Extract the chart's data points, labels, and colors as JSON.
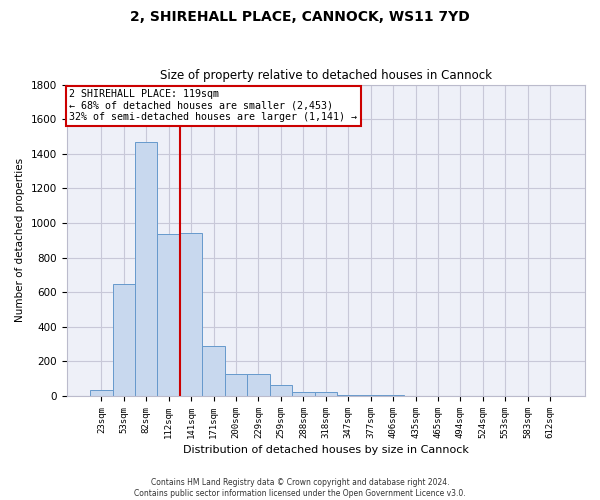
{
  "title1": "2, SHIREHALL PLACE, CANNOCK, WS11 7YD",
  "title2": "Size of property relative to detached houses in Cannock",
  "xlabel": "Distribution of detached houses by size in Cannock",
  "ylabel": "Number of detached properties",
  "bar_color": "#c8d8ee",
  "bar_edge_color": "#6699cc",
  "grid_color": "#c8c8d8",
  "background_color": "#eef0f8",
  "annotation_box_color": "#cc0000",
  "vline_color": "#cc0000",
  "categories": [
    "23sqm",
    "53sqm",
    "82sqm",
    "112sqm",
    "141sqm",
    "171sqm",
    "200sqm",
    "229sqm",
    "259sqm",
    "288sqm",
    "318sqm",
    "347sqm",
    "377sqm",
    "406sqm",
    "435sqm",
    "465sqm",
    "494sqm",
    "524sqm",
    "553sqm",
    "583sqm",
    "612sqm"
  ],
  "values": [
    38,
    650,
    1470,
    935,
    940,
    290,
    125,
    125,
    62,
    22,
    22,
    8,
    8,
    8,
    3,
    3,
    0,
    0,
    0,
    0,
    0
  ],
  "vline_x": 3.5,
  "annotation_line1": "2 SHIREHALL PLACE: 119sqm",
  "annotation_line2": "← 68% of detached houses are smaller (2,453)",
  "annotation_line3": "32% of semi-detached houses are larger (1,141) →",
  "footer1": "Contains HM Land Registry data © Crown copyright and database right 2024.",
  "footer2": "Contains public sector information licensed under the Open Government Licence v3.0.",
  "ylim": [
    0,
    1800
  ],
  "yticks": [
    0,
    200,
    400,
    600,
    800,
    1000,
    1200,
    1400,
    1600,
    1800
  ]
}
